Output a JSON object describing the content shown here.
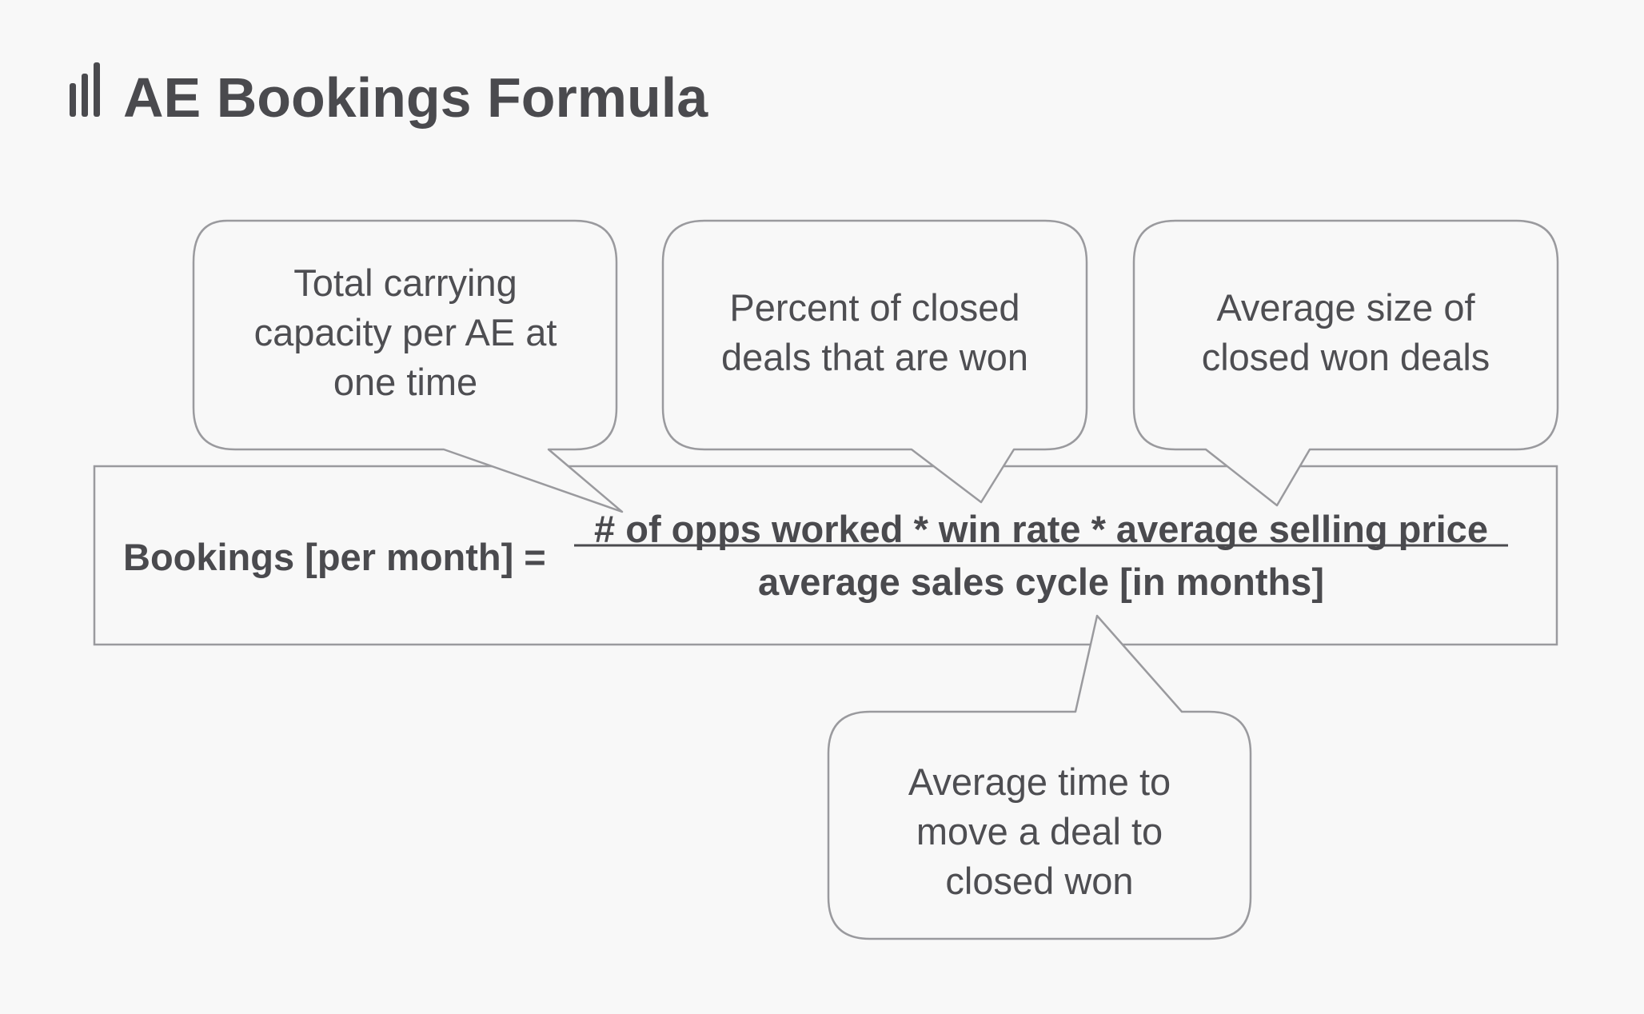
{
  "title": "AE Bookings Formula",
  "icon": "bar-chart-icon",
  "formula": {
    "label": "Bookings [per month] =",
    "numerator": "# of opps worked * win rate * average selling price",
    "denominator": "average sales cycle [in months]"
  },
  "callouts": [
    {
      "id": "capacity",
      "text": "Total carrying\ncapacity per AE at\none time"
    },
    {
      "id": "win-rate",
      "text": "Percent of closed\ndeals that are won"
    },
    {
      "id": "deal-size",
      "text": "Average size of\nclosed won deals"
    },
    {
      "id": "sales-cycle",
      "text": "Average time to\nmove a deal to\nclosed won"
    }
  ],
  "colors": {
    "background": "#f8f8f8",
    "text": "#4a4a4e",
    "stroke": "#9a9a9e"
  }
}
